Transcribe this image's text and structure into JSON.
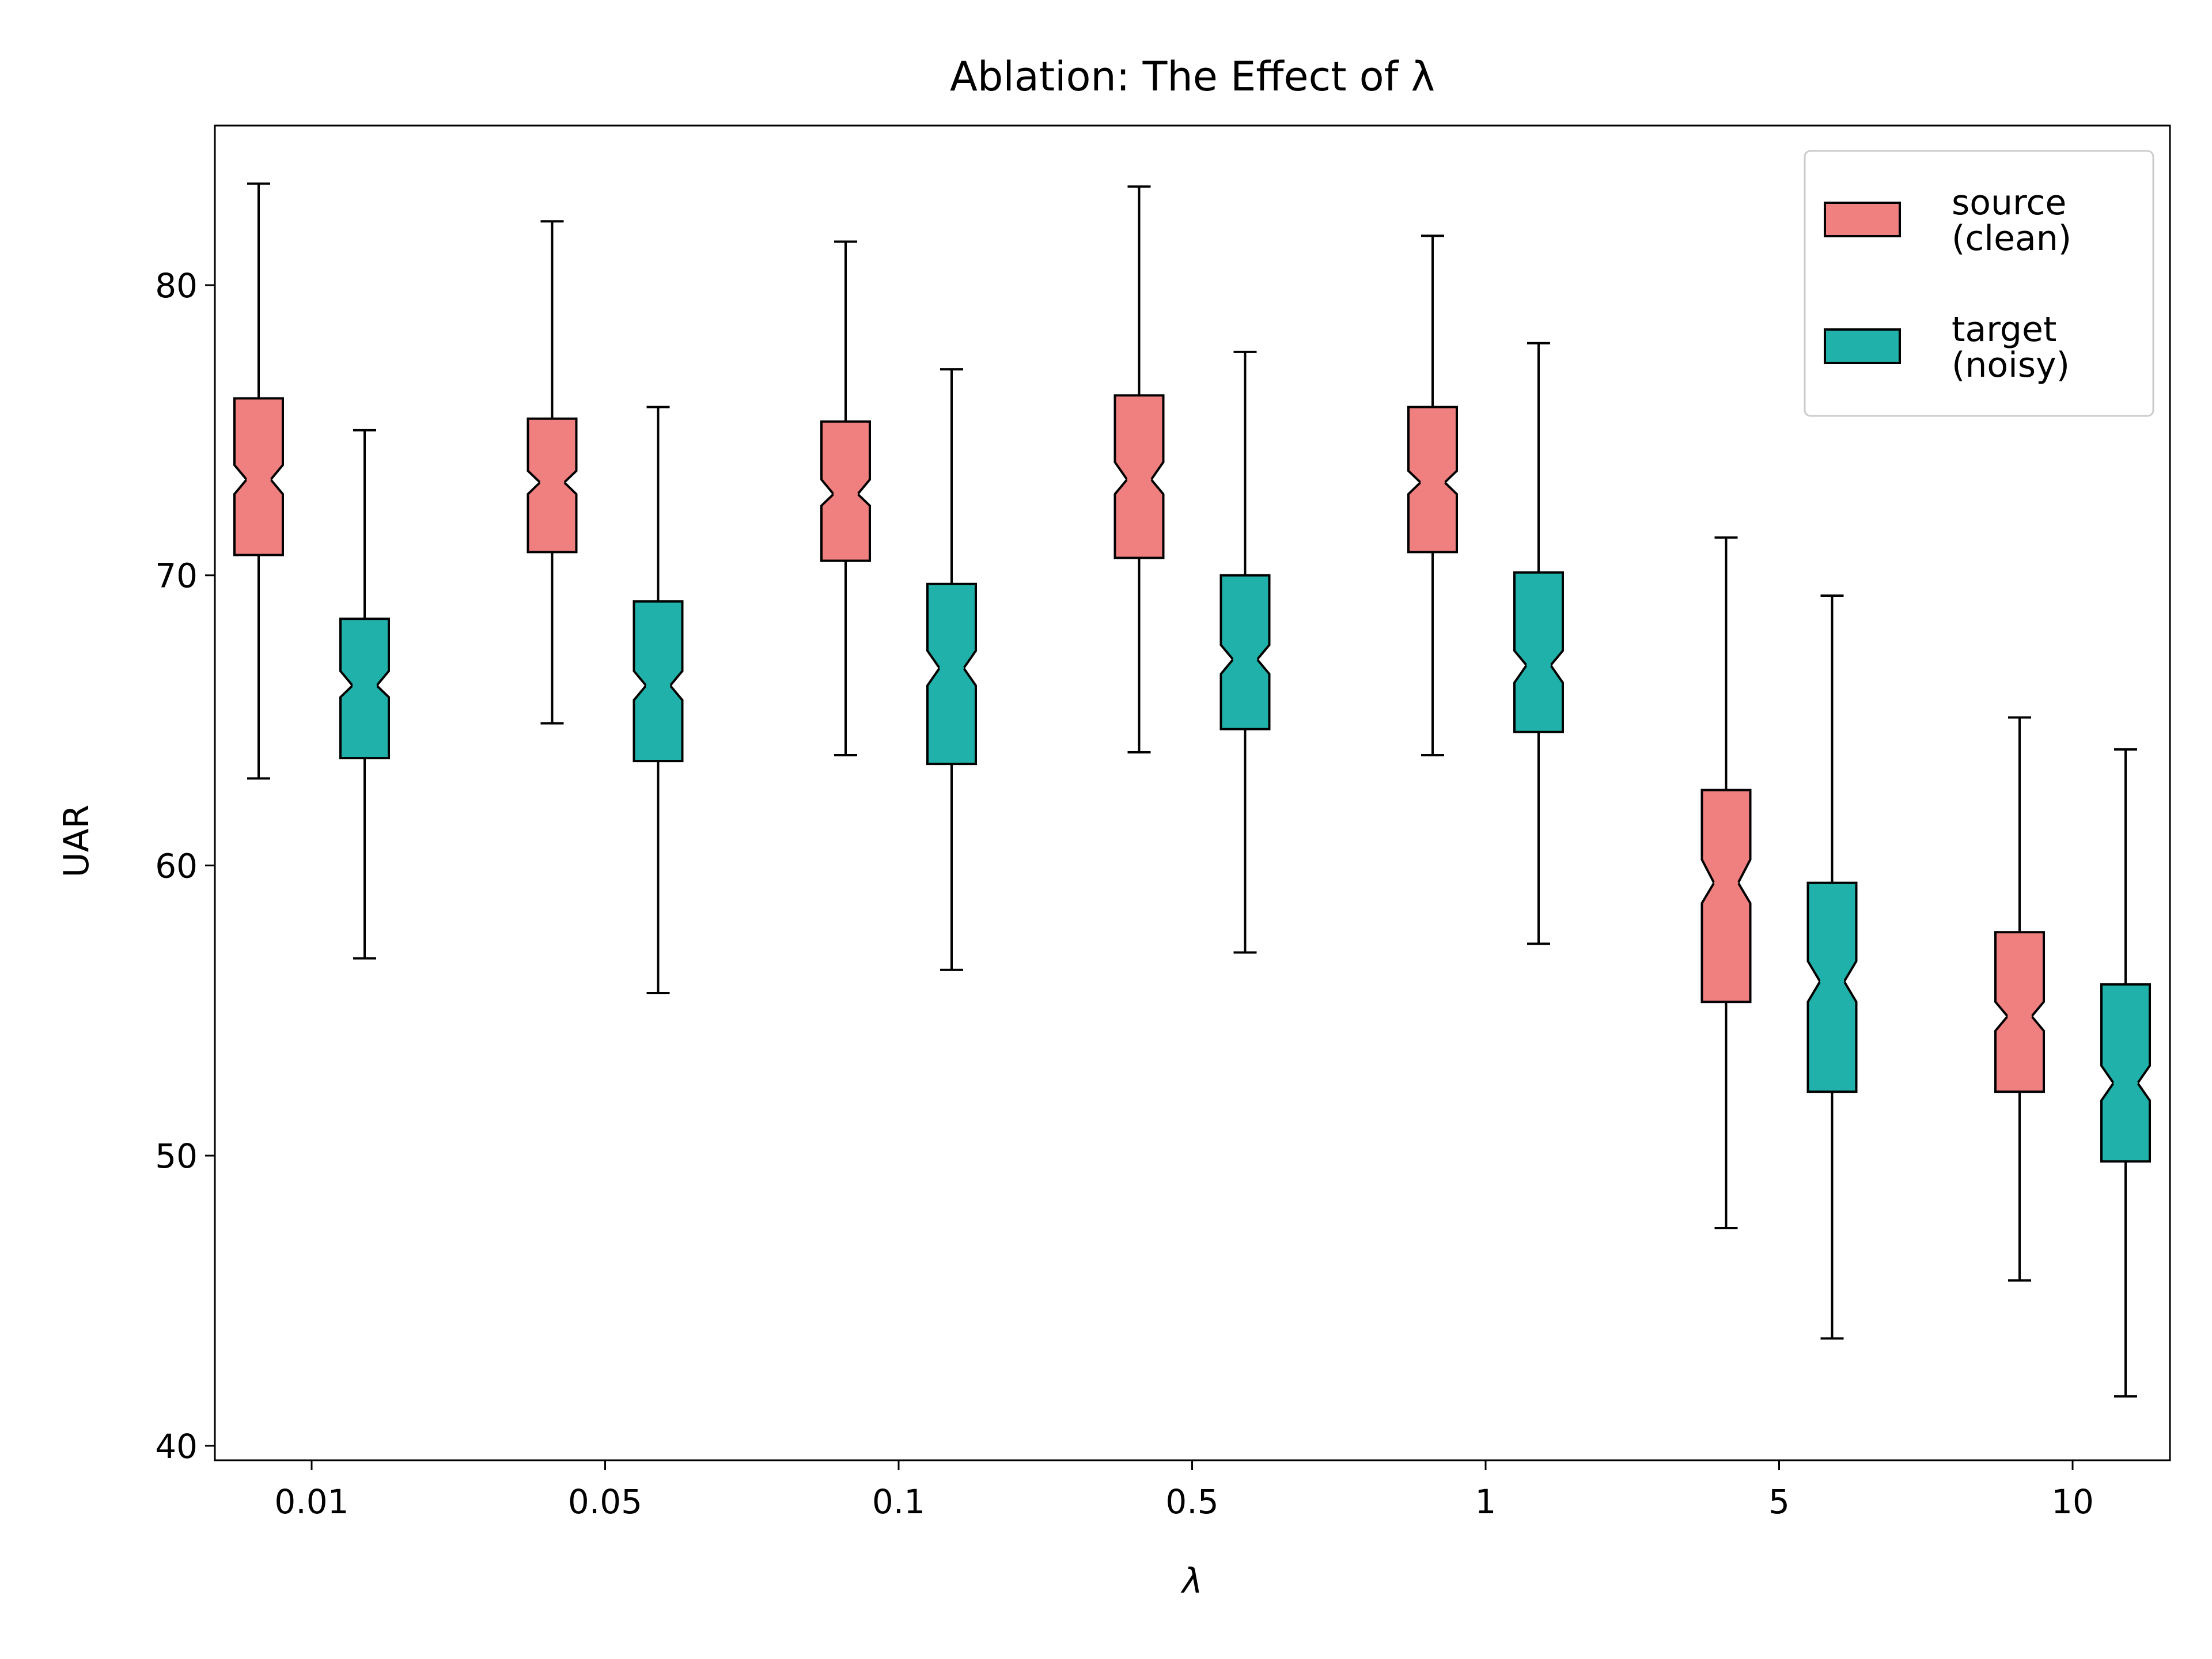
{
  "chart_data": {
    "type": "boxplot",
    "title": "Ablation: The Effect of λ",
    "xlabel": "λ",
    "ylabel": "UAR",
    "categories": [
      "0.01",
      "0.05",
      "0.1",
      "0.5",
      "1",
      "5",
      "10"
    ],
    "ylim": [
      39.5,
      85.5
    ],
    "yticks": [
      40,
      50,
      60,
      70,
      80
    ],
    "grid": false,
    "notched": true,
    "legend_position": "top-right",
    "series": [
      {
        "name": "source\n(clean)",
        "legend_lines": [
          "source",
          "(clean)"
        ],
        "color": "#f08080",
        "boxes": [
          {
            "whislo": 63.0,
            "q1": 70.7,
            "med": 73.3,
            "q3": 76.1,
            "whishi": 83.5,
            "notch_lo": 72.8,
            "notch_hi": 73.8
          },
          {
            "whislo": 64.9,
            "q1": 70.8,
            "med": 73.2,
            "q3": 75.4,
            "whishi": 82.2,
            "notch_lo": 72.8,
            "notch_hi": 73.6
          },
          {
            "whislo": 63.8,
            "q1": 70.5,
            "med": 72.8,
            "q3": 75.3,
            "whishi": 81.5,
            "notch_lo": 72.4,
            "notch_hi": 73.3
          },
          {
            "whislo": 63.9,
            "q1": 70.6,
            "med": 73.3,
            "q3": 76.2,
            "whishi": 83.4,
            "notch_lo": 72.8,
            "notch_hi": 73.9
          },
          {
            "whislo": 63.8,
            "q1": 70.8,
            "med": 73.2,
            "q3": 75.8,
            "whishi": 81.7,
            "notch_lo": 72.8,
            "notch_hi": 73.6
          },
          {
            "whislo": 47.5,
            "q1": 55.3,
            "med": 59.4,
            "q3": 62.6,
            "whishi": 71.3,
            "notch_lo": 58.7,
            "notch_hi": 60.2
          },
          {
            "whislo": 45.7,
            "q1": 52.2,
            "med": 54.8,
            "q3": 57.7,
            "whishi": 65.1,
            "notch_lo": 54.3,
            "notch_hi": 55.3
          }
        ]
      },
      {
        "name": "target\n(noisy)",
        "legend_lines": [
          "target",
          "(noisy)"
        ],
        "color": "#20b2aa",
        "boxes": [
          {
            "whislo": 56.8,
            "q1": 63.7,
            "med": 66.2,
            "q3": 68.5,
            "whishi": 75.0,
            "notch_lo": 65.8,
            "notch_hi": 66.7
          },
          {
            "whislo": 55.6,
            "q1": 63.6,
            "med": 66.2,
            "q3": 69.1,
            "whishi": 75.8,
            "notch_lo": 65.7,
            "notch_hi": 66.7
          },
          {
            "whislo": 56.4,
            "q1": 63.5,
            "med": 66.8,
            "q3": 69.7,
            "whishi": 77.1,
            "notch_lo": 66.2,
            "notch_hi": 67.4
          },
          {
            "whislo": 57.0,
            "q1": 64.7,
            "med": 67.1,
            "q3": 70.0,
            "whishi": 77.7,
            "notch_lo": 66.6,
            "notch_hi": 67.6
          },
          {
            "whislo": 57.3,
            "q1": 64.6,
            "med": 66.9,
            "q3": 70.1,
            "whishi": 78.0,
            "notch_lo": 66.3,
            "notch_hi": 67.4
          },
          {
            "whislo": 43.7,
            "q1": 52.2,
            "med": 56.0,
            "q3": 59.4,
            "whishi": 69.3,
            "notch_lo": 55.3,
            "notch_hi": 56.7
          },
          {
            "whislo": 41.7,
            "q1": 49.8,
            "med": 52.5,
            "q3": 55.9,
            "whishi": 64.0,
            "notch_lo": 51.9,
            "notch_hi": 53.1
          }
        ]
      }
    ]
  }
}
